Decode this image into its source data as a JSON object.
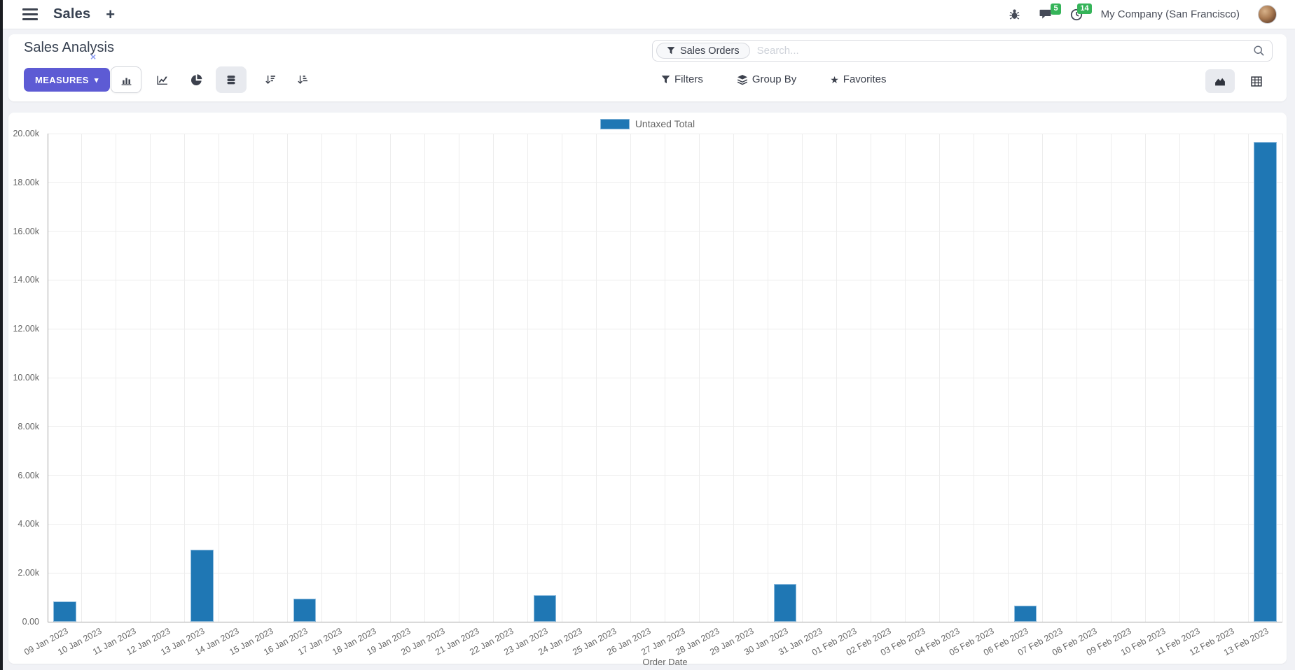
{
  "colors": {
    "accent": "#5d5bd4",
    "bar": "#1f77b4",
    "badge_green": "#35b459"
  },
  "icons": {
    "plus": "+",
    "caret_down": "▾",
    "star": "★",
    "close": "×"
  },
  "navbar": {
    "app_name": "Sales",
    "messages_badge": "5",
    "activities_badge": "14",
    "company": "My Company (San Francisco)"
  },
  "control_panel": {
    "title": "Sales Analysis",
    "measures_label": "MEASURES",
    "filters_label": "Filters",
    "group_by_label": "Group By",
    "favorites_label": "Favorites"
  },
  "search": {
    "facet": "Sales Orders",
    "placeholder": "Search..."
  },
  "chart_data": {
    "type": "bar",
    "title": "Sales Analysis",
    "legend": [
      {
        "label": "Untaxed Total",
        "color": "#1f77b4"
      }
    ],
    "legend_position": "top",
    "grid": true,
    "xlabel": "Order Date",
    "ylabel": "",
    "ylim": [
      0,
      20000
    ],
    "ytick_step": 2000,
    "ytick_labels": [
      "0.00",
      "2.00k",
      "4.00k",
      "6.00k",
      "8.00k",
      "10.00k",
      "12.00k",
      "14.00k",
      "16.00k",
      "18.00k",
      "20.00k"
    ],
    "categories": [
      "09 Jan 2023",
      "10 Jan 2023",
      "11 Jan 2023",
      "12 Jan 2023",
      "13 Jan 2023",
      "14 Jan 2023",
      "15 Jan 2023",
      "16 Jan 2023",
      "17 Jan 2023",
      "18 Jan 2023",
      "19 Jan 2023",
      "20 Jan 2023",
      "21 Jan 2023",
      "22 Jan 2023",
      "23 Jan 2023",
      "24 Jan 2023",
      "25 Jan 2023",
      "26 Jan 2023",
      "27 Jan 2023",
      "28 Jan 2023",
      "29 Jan 2023",
      "30 Jan 2023",
      "31 Jan 2023",
      "01 Feb 2023",
      "02 Feb 2023",
      "03 Feb 2023",
      "04 Feb 2023",
      "05 Feb 2023",
      "06 Feb 2023",
      "07 Feb 2023",
      "08 Feb 2023",
      "09 Feb 2023",
      "10 Feb 2023",
      "11 Feb 2023",
      "12 Feb 2023",
      "13 Feb 2023"
    ],
    "series": [
      {
        "name": "Untaxed Total",
        "values": [
          840,
          0,
          0,
          0,
          2950,
          0,
          0,
          950,
          0,
          0,
          0,
          0,
          0,
          0,
          1090,
          0,
          0,
          0,
          0,
          0,
          0,
          1550,
          0,
          0,
          0,
          0,
          0,
          0,
          670,
          0,
          0,
          0,
          0,
          0,
          0,
          19650
        ]
      }
    ]
  }
}
